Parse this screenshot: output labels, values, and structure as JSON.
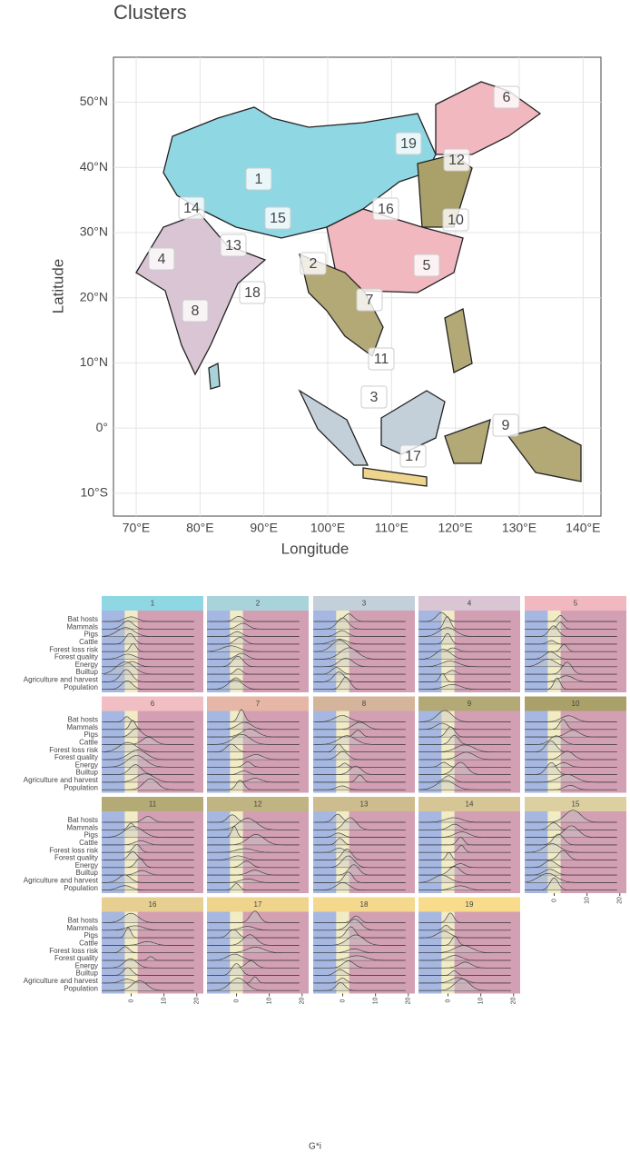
{
  "title": "Clusters",
  "map": {
    "x_label": "Longitude",
    "y_label": "Latitude",
    "xlim": [
      66.44,
      142.8
    ],
    "ylim": [
      -13.5,
      56.9
    ],
    "xticks": [
      {
        "value": 70,
        "label": "70°E"
      },
      {
        "value": 80,
        "label": "80°E"
      },
      {
        "value": 90,
        "label": "90°E"
      },
      {
        "value": 100,
        "label": "100°E"
      },
      {
        "value": 110,
        "label": "110°E"
      },
      {
        "value": 120,
        "label": "120°E"
      },
      {
        "value": 130,
        "label": "130°E"
      },
      {
        "value": 140,
        "label": "140°E"
      }
    ],
    "yticks": [
      {
        "value": -10,
        "label": "10°S"
      },
      {
        "value": 0,
        "label": "0°"
      },
      {
        "value": 10,
        "label": "10°N"
      },
      {
        "value": 20,
        "label": "20°N"
      },
      {
        "value": 30,
        "label": "30°N"
      },
      {
        "value": 40,
        "label": "40°N"
      },
      {
        "value": 50,
        "label": "50°N"
      }
    ],
    "clusters": [
      "1",
      "2",
      "3",
      "4",
      "5",
      "6",
      "7",
      "8",
      "9",
      "10",
      "11",
      "12",
      "13",
      "14",
      "15",
      "16",
      "17",
      "18",
      "19"
    ]
  },
  "ridges": {
    "x_label": "G*i",
    "xlim": [
      -9,
      22
    ],
    "xticks": [
      0,
      10,
      20
    ],
    "variables": [
      "Bat hosts",
      "Mammals",
      "Pigs",
      "Cattle",
      "Forest loss risk",
      "Forest quality",
      "Energy",
      "Builtup",
      "Agriculture and harvest",
      "Population"
    ],
    "panels": [
      {
        "title": "1",
        "color": "#8fd7e3"
      },
      {
        "title": "2",
        "color": "#a8d3db"
      },
      {
        "title": "3",
        "color": "#c3cfd9"
      },
      {
        "title": "4",
        "color": "#d9c5d3"
      },
      {
        "title": "5",
        "color": "#f1b8c0"
      },
      {
        "title": "6",
        "color": "#f1bfc3"
      },
      {
        "title": "7",
        "color": "#e6b7a7"
      },
      {
        "title": "8",
        "color": "#d4b59b"
      },
      {
        "title": "9",
        "color": "#b3a977"
      },
      {
        "title": "10",
        "color": "#a9a06a"
      },
      {
        "title": "11",
        "color": "#b4aa75"
      },
      {
        "title": "12",
        "color": "#c0b482"
      },
      {
        "title": "13",
        "color": "#ccbc8e"
      },
      {
        "title": "14",
        "color": "#d6c696"
      },
      {
        "title": "15",
        "color": "#dccfa0"
      },
      {
        "title": "16",
        "color": "#e6cf90"
      },
      {
        "title": "17",
        "color": "#eed48d"
      },
      {
        "title": "18",
        "color": "#f3d88e"
      },
      {
        "title": "19",
        "color": "#f8dc8c"
      }
    ]
  }
}
